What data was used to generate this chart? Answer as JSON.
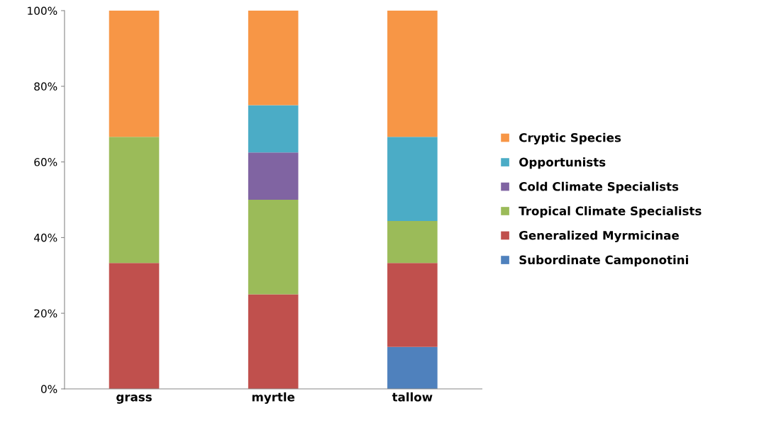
{
  "chart_data": {
    "type": "bar",
    "stacked": true,
    "categories": [
      "grass",
      "myrtle",
      "tallow"
    ],
    "series": [
      {
        "name": "Subordinate Camponotini",
        "color": "#4f81bd",
        "values": [
          null,
          null,
          11.1
        ]
      },
      {
        "name": "Generalized Myrmicinae",
        "color": "#c0504d",
        "values": [
          33.3,
          25,
          22.2
        ]
      },
      {
        "name": "Tropical Climate Specialists",
        "color": "#9bbb59",
        "values": [
          33.3,
          25,
          11.1
        ]
      },
      {
        "name": "Cold Climate Specialists",
        "color": "#8064a2",
        "values": [
          null,
          12.5,
          null
        ]
      },
      {
        "name": "Opportunists",
        "color": "#4bacc6",
        "values": [
          null,
          12.5,
          22.2
        ]
      },
      {
        "name": "Cryptic Species",
        "color": "#f79646",
        "values": [
          33.4,
          25,
          33.4
        ]
      }
    ],
    "ylim": [
      0,
      100
    ],
    "yticks": [
      {
        "value": 0,
        "label": "0%"
      },
      {
        "value": 20,
        "label": "20%"
      },
      {
        "value": 40,
        "label": "40%"
      },
      {
        "value": 60,
        "label": "60%"
      },
      {
        "value": 80,
        "label": "80%"
      },
      {
        "value": 100,
        "label": "100%"
      }
    ],
    "grid": false,
    "legend": "right"
  }
}
